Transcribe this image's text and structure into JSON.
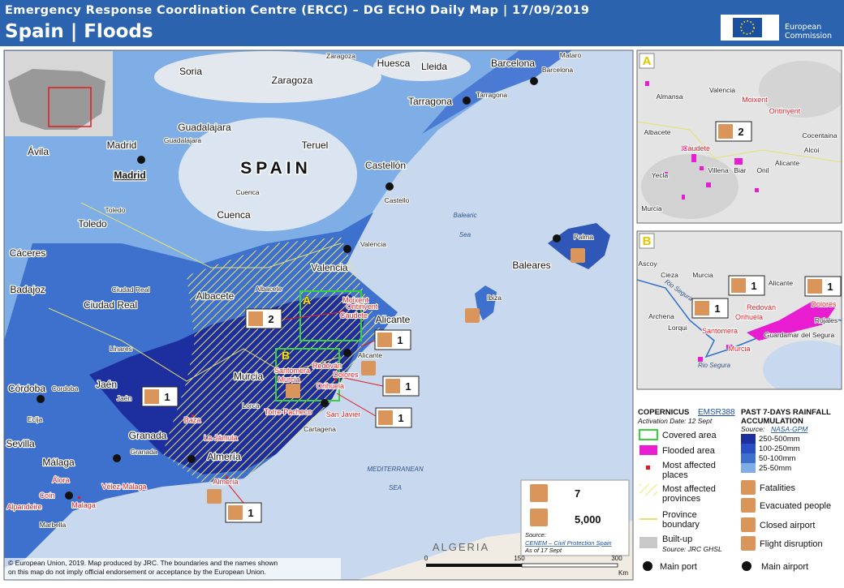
{
  "header": {
    "subtitle": "Emergency Response Coordination Centre (ERCC) – DG ECHO Daily Map | 17/09/2019",
    "title": "Spain | Floods",
    "logo": [
      "European",
      "Commission"
    ]
  },
  "map": {
    "country": "SPAIN",
    "regions": [
      "Huesca",
      "Lleida",
      "Barcelona",
      "Soria",
      "Zaragoza",
      "Guadalajara",
      "Teruel",
      "Tarragona",
      "Madrid",
      "Castellón",
      "Ávila",
      "Toledo",
      "Cuenca",
      "Valencia",
      "Cáceres",
      "Badajoz",
      "Ciudad Real",
      "Albacete",
      "Alicante",
      "Murcia",
      "Jaén",
      "Córdoba",
      "Granada",
      "Sevilla",
      "Almería",
      "Málaga",
      "Baleares"
    ],
    "capital": "Madrid",
    "towns": [
      "Zaragoza",
      "Mataro",
      "Barcelona",
      "Tarragona",
      "Guadalajara",
      "Cuenca",
      "Castello",
      "Toledo",
      "Valencia",
      "Ciudad Real",
      "Albacete",
      "Palma",
      "Ibiza",
      "Linares",
      "Jaén",
      "Cordoba",
      "Ecija",
      "Granada",
      "Alicante",
      "Lorca",
      "Cartagena",
      "Marbella"
    ],
    "affected_places": [
      "Moixent",
      "Ontinyent",
      "Caudete",
      "Santomera",
      "Murcia",
      "Redován",
      "Dolores",
      "Orihuela",
      "Torre-Pacheco",
      "San Javier",
      "Baza",
      "La Jámula",
      "Almería",
      "Álora",
      "Coín",
      "Vélez-Málaga",
      "Malaga",
      "Alpandeire"
    ],
    "seas": [
      "Balearic",
      "Sea",
      "MEDITERRANEAN",
      "SEA"
    ],
    "neighbour": "ALGERIA",
    "zones": [
      "A",
      "B"
    ],
    "markers": [
      "2",
      "1",
      "1",
      "1",
      "1",
      "1"
    ]
  },
  "summary": {
    "fatalities": "7",
    "evacuated": "5,000",
    "source_label": "Source:",
    "source": "CENEM – Civil Protection Spain",
    "date": "As of 17 Sept"
  },
  "inset_a": {
    "letter": "A",
    "labels": [
      "Almansa",
      "Valencia",
      "Albacete",
      "Cocentaina",
      "Alcoi",
      "Yecla",
      "Villena",
      "Biar",
      "Onil",
      "Alicante",
      "Murcia"
    ],
    "affected": [
      "Moixent",
      "Ontinyent",
      "Caudete"
    ],
    "marker": "2"
  },
  "inset_b": {
    "letter": "B",
    "labels": [
      "Ascoy",
      "Cieza",
      "Murcia",
      "Alicante",
      "Archena",
      "Lorqui",
      "Rojales",
      "Guardamar del Segura"
    ],
    "rivers": [
      "Rio Segura",
      "Rio Segura"
    ],
    "affected": [
      "Santomera",
      "Redován",
      "Dolores",
      "Orihuela",
      "Murcia"
    ],
    "markers": [
      "1",
      "1",
      "1"
    ]
  },
  "legend": {
    "copernicus": "COPERNICUS",
    "emsr": "EMSR388",
    "activation": "Activation Date:  12 Sept",
    "items": [
      [
        "Covered area"
      ],
      [
        "Flooded area"
      ],
      [
        "Most affected",
        "places"
      ],
      [
        "Most affected",
        "provinces"
      ],
      [
        "Province",
        "boundary"
      ],
      [
        "Built-up"
      ]
    ],
    "builtup_source": "Source:  JRC GHSL",
    "rain_title": [
      "PAST 7-DAYS RAINFALL",
      "ACCUMULATION"
    ],
    "rain_source_label": "Source:",
    "rain_source": "NASA-GPM",
    "rain_classes": [
      "250-500mm",
      "100-250mm",
      "50-100mm",
      "25-50mm"
    ],
    "symbols": [
      "Fatalities",
      "Evacuated people",
      "Closed airport",
      "Flight disruption"
    ],
    "port": "Main port",
    "airport": "Main airport"
  },
  "scale": [
    "0",
    "150",
    "300",
    "Km"
  ],
  "footer": [
    "© European Union, 2019. Map produced by JRC. The boundaries and the names shown",
    "on this map do not imply official endorsement or acceptance by the European Union."
  ]
}
